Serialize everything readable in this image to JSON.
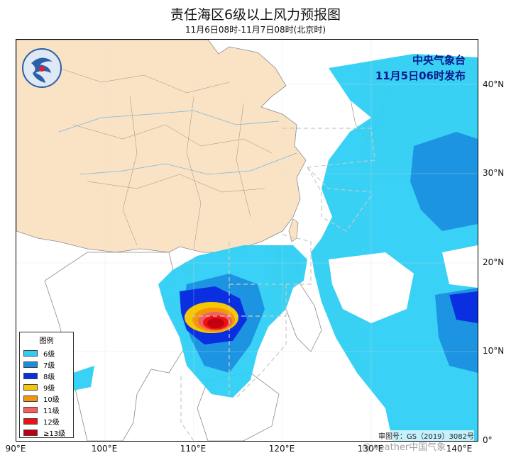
{
  "header": {
    "title": "责任海区6级以上风力预报图",
    "subtitle": "11月6日08时-11月7日08时(北京时)"
  },
  "issuer": {
    "name": "中央气象台",
    "time": "11月5日06时发布"
  },
  "axes": {
    "lat_labels": [
      "40°N",
      "30°N",
      "20°N",
      "10°N",
      "0°"
    ],
    "lon_labels": [
      "90°E",
      "100°E",
      "110°E",
      "120°E",
      "130°E",
      "140°E"
    ]
  },
  "legend": {
    "title": "图例",
    "items": [
      {
        "label": "6级",
        "color": "#2ecff4"
      },
      {
        "label": "7级",
        "color": "#1a8de0"
      },
      {
        "label": "8级",
        "color": "#0a2fe0"
      },
      {
        "label": "9级",
        "color": "#f5c800"
      },
      {
        "label": "10级",
        "color": "#f5950a"
      },
      {
        "label": "11级",
        "color": "#f26060"
      },
      {
        "label": "12级",
        "color": "#f01010"
      },
      {
        "label": "≥13级",
        "color": "#c00010"
      }
    ]
  },
  "footer": {
    "approval": "审图号：GS（2019）3082号",
    "watermark": "@weather中国气象"
  },
  "colors": {
    "land_china": "#fae3c4",
    "sea": "#ffffff",
    "border": "#888888"
  }
}
